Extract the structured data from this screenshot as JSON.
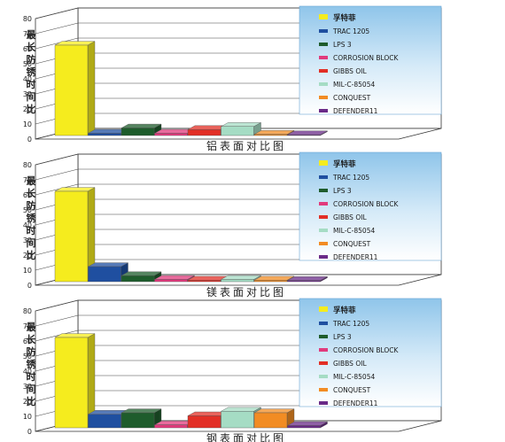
{
  "chart_data": [
    {
      "type": "bar",
      "title": "铝表面对比图",
      "ylabel": "最长防锈时间比",
      "ylim": [
        0,
        80
      ],
      "yticks": [
        0,
        10,
        20,
        30,
        40,
        50,
        60,
        70,
        80
      ],
      "categories": [
        "孚特菲",
        "TRAC 1205",
        "LPS 3",
        "CORROSION BLOCK",
        "GIBBS OIL",
        "MIL-C-85054",
        "CONQUEST",
        "DEFENDER11"
      ],
      "values": [
        60,
        1.5,
        5,
        1.5,
        4,
        6,
        0.8,
        0.5
      ],
      "colors": [
        "#f5ec1e",
        "#1f4fa0",
        "#1e5c2c",
        "#e13a7c",
        "#e22f26",
        "#a5dcc4",
        "#f28c23",
        "#6a2b88"
      ],
      "legend_position": "top-right"
    },
    {
      "type": "bar",
      "title": "镁表面对比图",
      "ylabel": "最长防锈时间比",
      "ylim": [
        0,
        80
      ],
      "yticks": [
        0,
        10,
        20,
        30,
        40,
        50,
        60,
        70,
        80
      ],
      "categories": [
        "孚特菲",
        "TRAC 1205",
        "LPS 3",
        "CORROSION BLOCK",
        "GIBBS OIL",
        "MIL-C-85054",
        "CONQUEST",
        "DEFENDER11"
      ],
      "values": [
        60,
        10,
        4,
        1.5,
        1,
        1.5,
        1,
        0.8
      ],
      "colors": [
        "#f5ec1e",
        "#1f4fa0",
        "#1e5c2c",
        "#e13a7c",
        "#e22f26",
        "#a5dcc4",
        "#f28c23",
        "#6a2b88"
      ],
      "legend_position": "top-right"
    },
    {
      "type": "bar",
      "title": "钢表面对比图",
      "ylabel": "最长防锈时间比",
      "ylim": [
        0,
        80
      ],
      "yticks": [
        0,
        10,
        20,
        30,
        40,
        50,
        60,
        70,
        80
      ],
      "categories": [
        "孚特菲",
        "TRAC 1205",
        "LPS 3",
        "CORROSION BLOCK",
        "GIBBS OIL",
        "MIL-C-85054",
        "CONQUEST",
        "DEFENDER11"
      ],
      "values": [
        60,
        9,
        10,
        2,
        8,
        11,
        10,
        1.5
      ],
      "colors": [
        "#f5ec1e",
        "#1f4fa0",
        "#1e5c2c",
        "#e13a7c",
        "#e22f26",
        "#a5dcc4",
        "#f28c23",
        "#6a2b88"
      ],
      "legend_position": "top-right"
    }
  ]
}
